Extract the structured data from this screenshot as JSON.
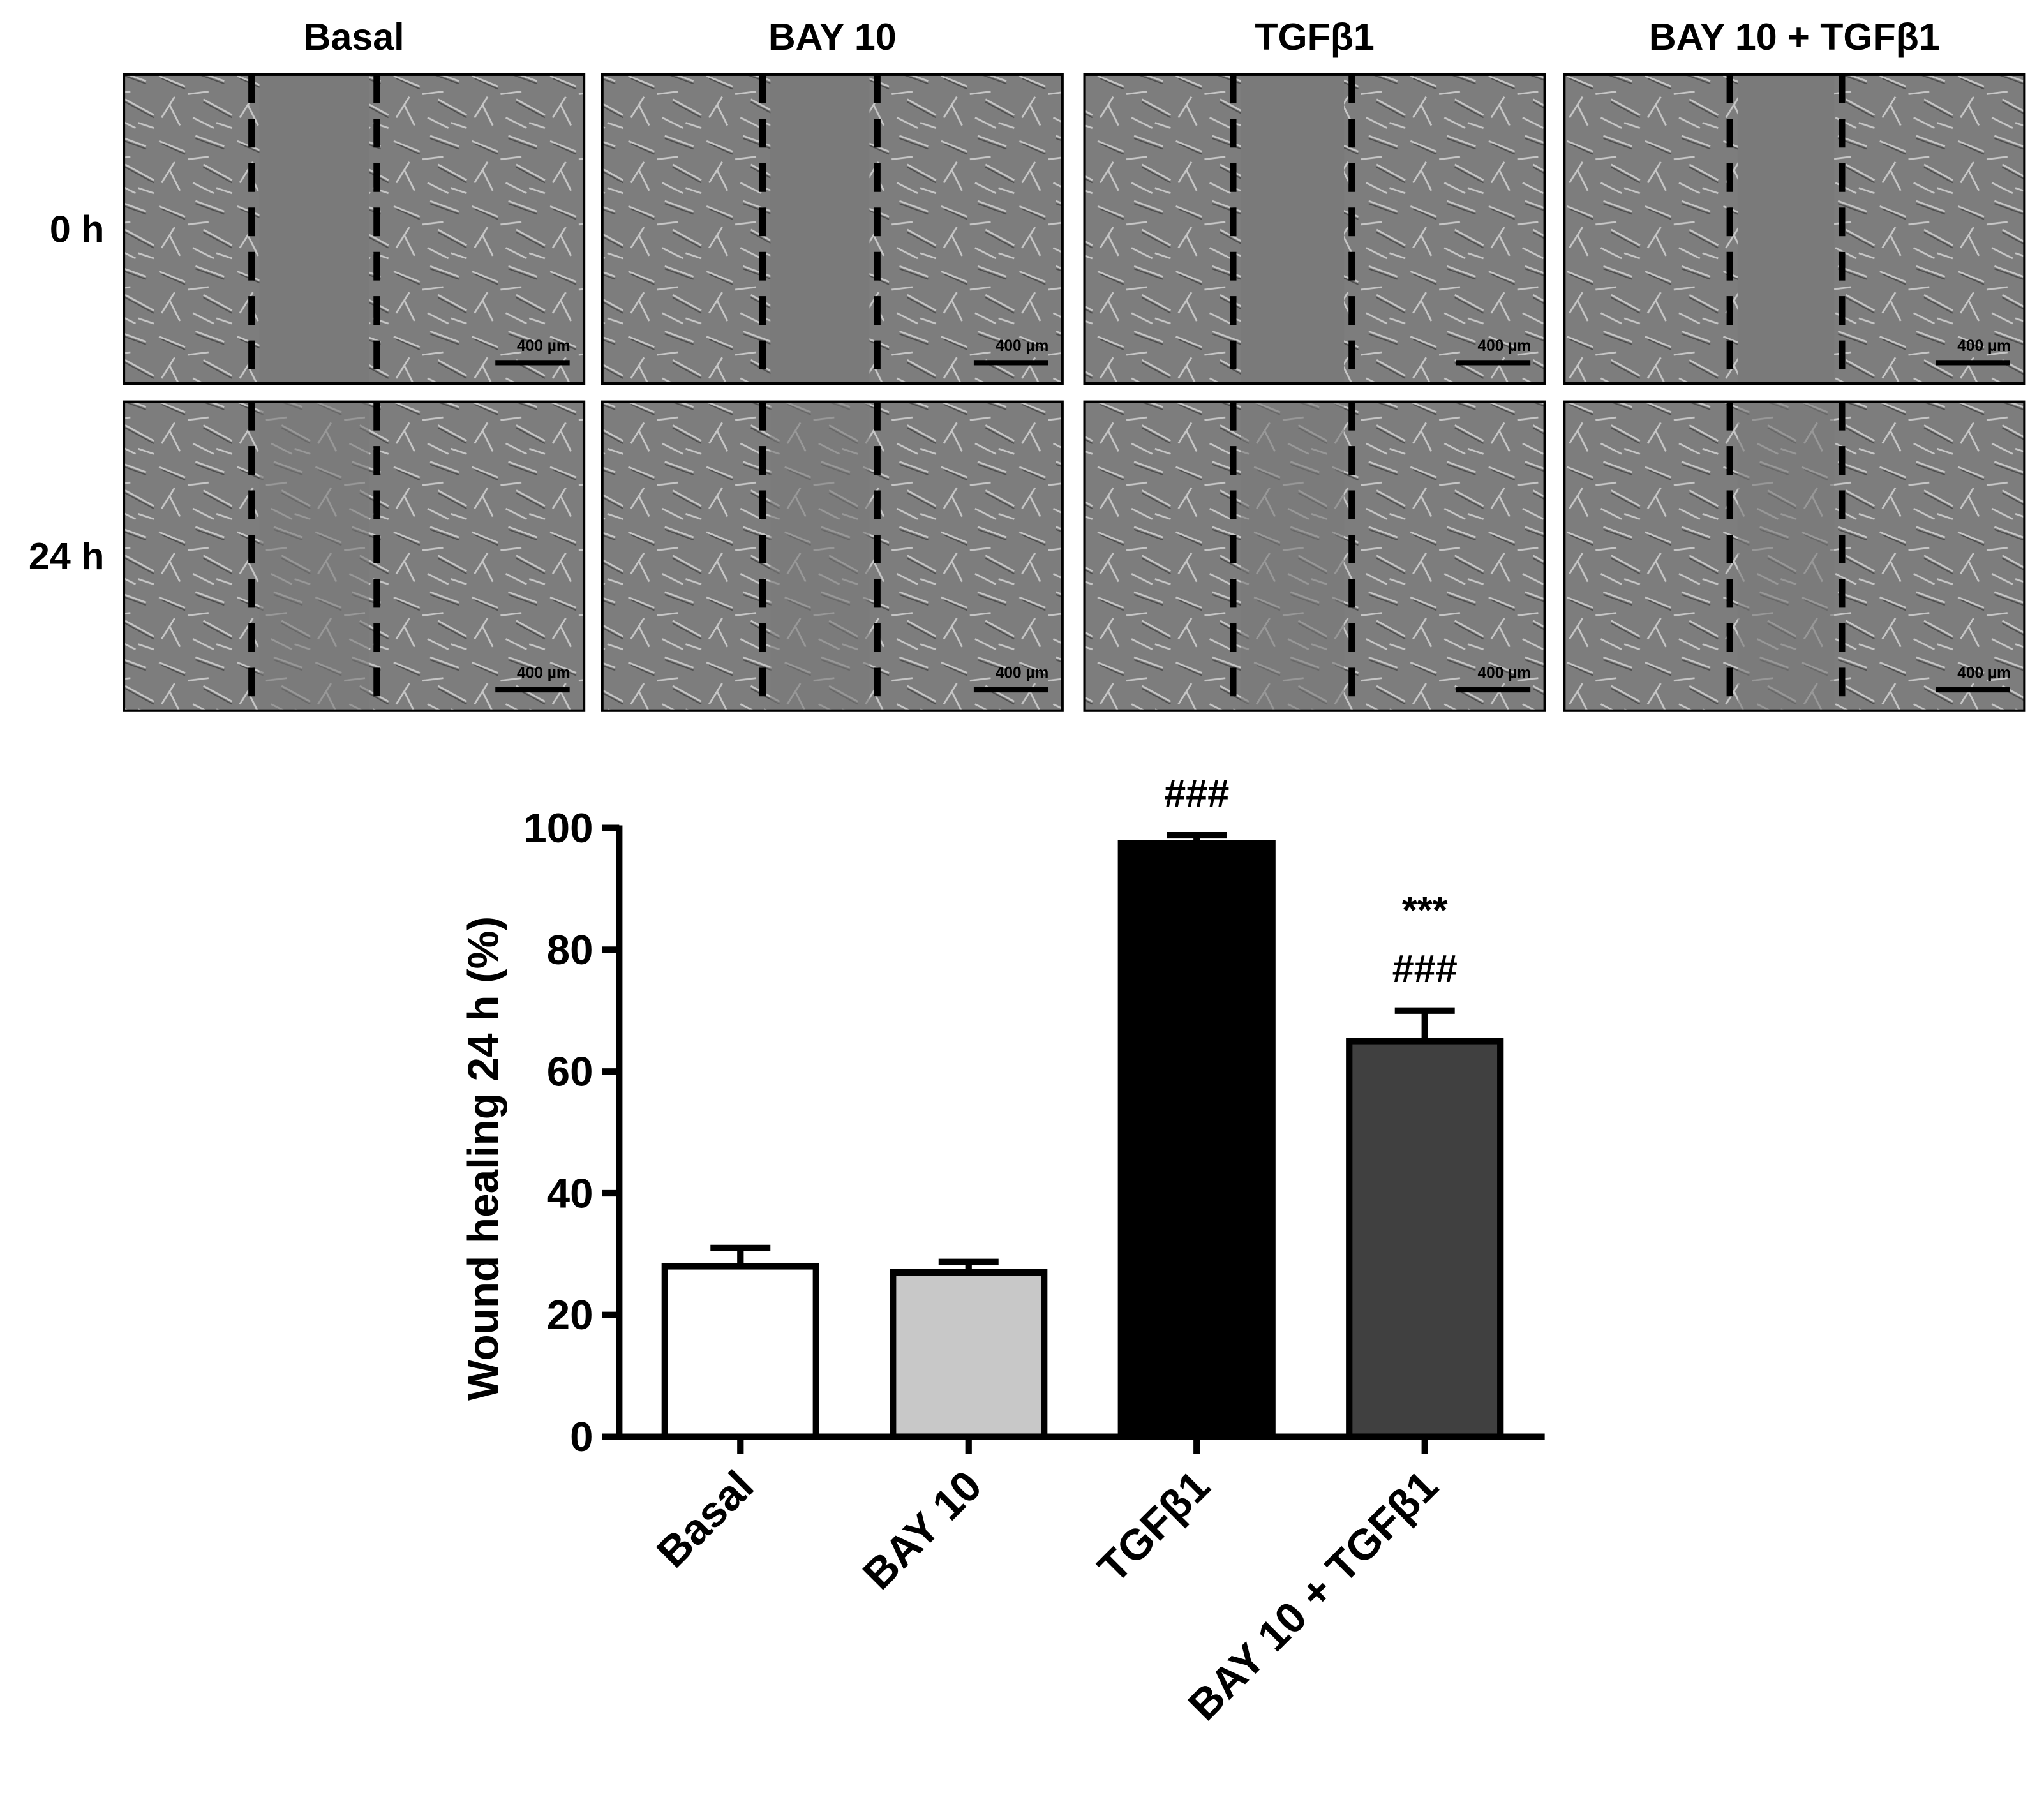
{
  "micrographs": {
    "columns": [
      "Basal",
      "BAY 10",
      "TGFβ1",
      "BAY 10 + TGFβ1"
    ],
    "rows": [
      "0 h",
      "24 h"
    ],
    "scale_bar": "400 µm"
  },
  "chart_data": {
    "type": "bar",
    "y_label": "Wound healing 24 h (%)",
    "categories": [
      "Basal",
      "BAY 10",
      "TGFβ1",
      "BAY 10 + TGFβ1"
    ],
    "values": [
      28,
      27,
      97.5,
      65
    ],
    "errors": [
      3,
      1.7,
      1.3,
      5
    ],
    "colors": [
      "#ffffff",
      "#c8c8c8",
      "#000000",
      "#404040"
    ],
    "annotations": [
      [],
      [],
      [
        "###"
      ],
      [
        "###",
        "***"
      ]
    ],
    "ylim": [
      0,
      100
    ],
    "yticks": [
      0,
      20,
      40,
      60,
      80,
      100
    ],
    "grid": false
  }
}
